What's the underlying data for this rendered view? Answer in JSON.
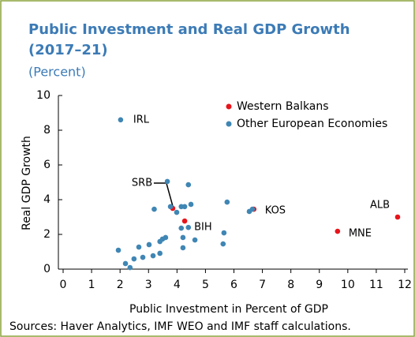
{
  "chart_data": {
    "type": "scatter",
    "title": [
      "Public Investment and Real GDP Growth",
      "(2017–21)"
    ],
    "subtitle": "(Percent)",
    "x_label": "Public Investment in Percent of GDP",
    "y_label": "Real GDP Growth",
    "source": "Sources: Haver Analytics, IMF WEO and IMF staff calculations.",
    "xlim": [
      0,
      12
    ],
    "xticks": [
      0,
      1,
      2,
      3,
      4,
      5,
      6,
      7,
      8,
      9,
      10,
      11,
      12
    ],
    "ylim": [
      0,
      10
    ],
    "yticks": [
      0,
      2,
      4,
      6,
      8,
      10
    ],
    "legend": "upper right",
    "series": [
      {
        "name": "Western Balkans",
        "color": "#e8141b",
        "x": [
          3.85,
          4.27,
          6.7,
          9.64,
          11.75
        ],
        "values": [
          3.5,
          2.77,
          3.45,
          2.18,
          3.0
        ],
        "point_labels": [
          "SRB",
          "BIH",
          "KOS",
          "MNE",
          "ALB"
        ]
      },
      {
        "name": "Other European Economies",
        "color": "#3f86b4",
        "x": [
          2.02,
          3.66,
          4.4,
          5.76,
          3.2,
          3.77,
          4.15,
          4.27,
          4.49,
          3.99,
          6.54,
          6.65,
          4.15,
          4.4,
          5.65,
          4.21,
          4.63,
          3.6,
          3.49,
          3.4,
          3.02,
          2.66,
          1.94,
          5.62,
          4.21,
          3.4,
          3.16,
          2.8,
          2.49,
          2.19,
          2.35
        ],
        "values": [
          8.6,
          5.05,
          4.86,
          3.86,
          3.45,
          3.6,
          3.6,
          3.6,
          3.73,
          3.27,
          3.32,
          3.45,
          2.36,
          2.4,
          2.09,
          1.82,
          1.68,
          1.82,
          1.73,
          1.59,
          1.41,
          1.27,
          1.09,
          1.45,
          1.23,
          0.91,
          0.77,
          0.68,
          0.59,
          0.32,
          0.09
        ],
        "point_labels": [
          "IRL",
          null,
          null,
          null,
          null,
          null,
          null,
          null,
          null,
          null,
          null,
          null,
          null,
          null,
          null,
          null,
          null,
          null,
          null,
          null,
          null,
          null,
          null,
          null,
          null,
          null,
          null,
          null,
          null,
          null,
          null
        ]
      }
    ]
  }
}
